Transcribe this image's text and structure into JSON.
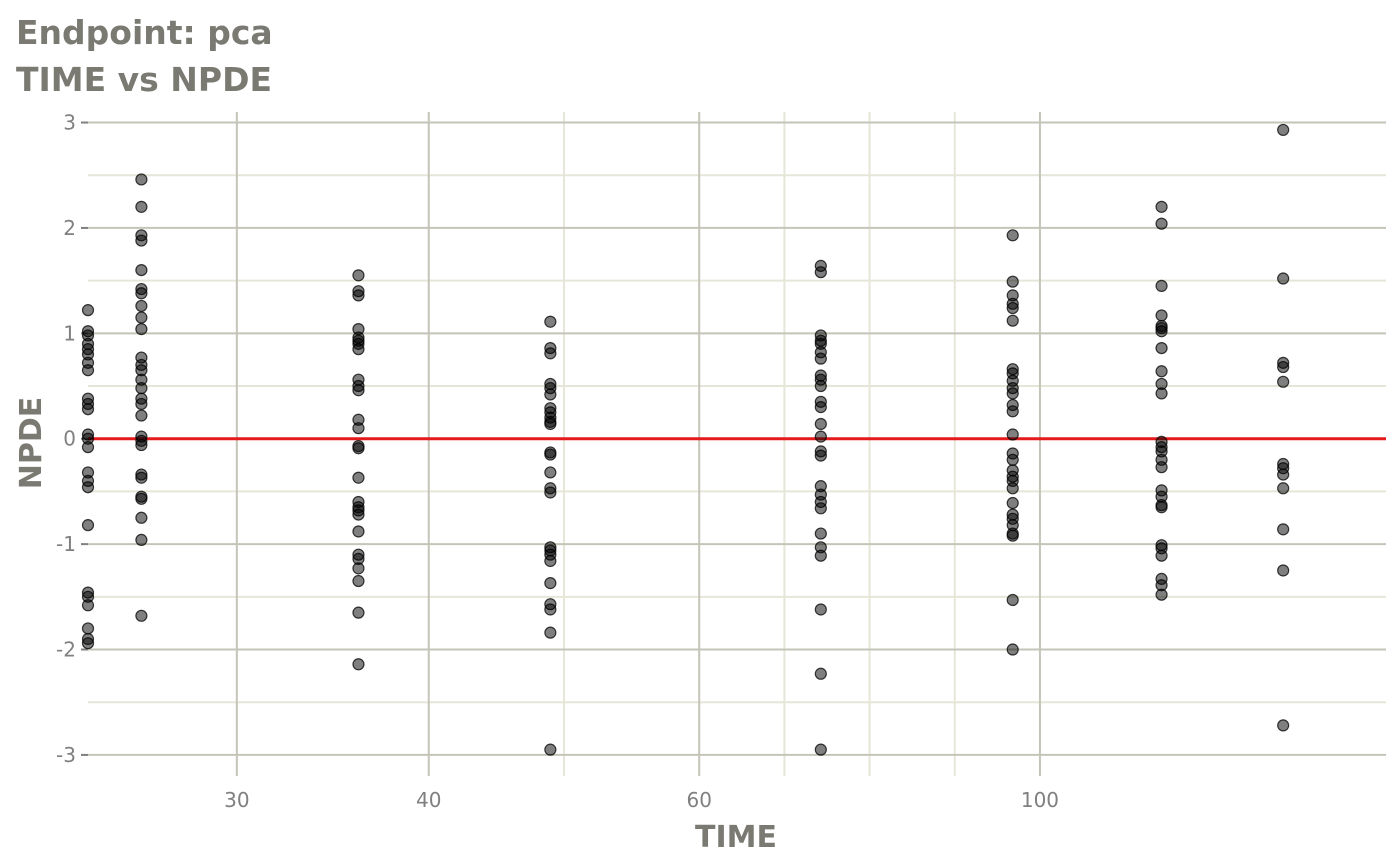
{
  "chart_data": {
    "type": "scatter",
    "title": "Endpoint:  pca",
    "subtitle": "TIME vs NPDE",
    "xlabel": "TIME",
    "ylabel": "NPDE",
    "x_scale": "log",
    "xlim": [
      24,
      168
    ],
    "ylim": [
      -3.2,
      3.1
    ],
    "x_ticks": [
      {
        "value": 30,
        "label": "30"
      },
      {
        "value": 40,
        "label": "40"
      },
      {
        "value": 60,
        "label": "60"
      },
      {
        "value": 100,
        "label": "100"
      }
    ],
    "y_ticks": [
      {
        "value": 3,
        "label": "3"
      },
      {
        "value": 2,
        "label": "2"
      },
      {
        "value": 1,
        "label": "1"
      },
      {
        "value": 0,
        "label": "0"
      },
      {
        "value": -1,
        "label": "-1"
      },
      {
        "value": -2,
        "label": "-2"
      },
      {
        "value": -3,
        "label": "-3"
      }
    ],
    "reference_line": {
      "y": 0,
      "color": "#e41a1c"
    },
    "point_color": "#000000",
    "point_opacity": 0.5,
    "grid": true,
    "series": [
      {
        "values": [
          {
            "x": 24,
            "y": 1.22
          },
          {
            "x": 24,
            "y": 1.02
          },
          {
            "x": 24,
            "y": 0.98
          },
          {
            "x": 24,
            "y": 0.9
          },
          {
            "x": 24,
            "y": 0.85
          },
          {
            "x": 24,
            "y": 0.8
          },
          {
            "x": 24,
            "y": 0.72
          },
          {
            "x": 24,
            "y": 0.65
          },
          {
            "x": 24,
            "y": 0.38
          },
          {
            "x": 24,
            "y": 0.33
          },
          {
            "x": 24,
            "y": 0.28
          },
          {
            "x": 24,
            "y": 0.04
          },
          {
            "x": 24,
            "y": 0.0
          },
          {
            "x": 24,
            "y": -0.08
          },
          {
            "x": 24,
            "y": -0.32
          },
          {
            "x": 24,
            "y": -0.4
          },
          {
            "x": 24,
            "y": -0.46
          },
          {
            "x": 24,
            "y": -0.82
          },
          {
            "x": 24,
            "y": -1.46
          },
          {
            "x": 24,
            "y": -1.5
          },
          {
            "x": 24,
            "y": -1.58
          },
          {
            "x": 24,
            "y": -1.8
          },
          {
            "x": 24,
            "y": -1.9
          },
          {
            "x": 24,
            "y": -1.94
          },
          {
            "x": 26,
            "y": 2.46
          },
          {
            "x": 26,
            "y": 2.2
          },
          {
            "x": 26,
            "y": 1.93
          },
          {
            "x": 26,
            "y": 1.88
          },
          {
            "x": 26,
            "y": 1.6
          },
          {
            "x": 26,
            "y": 1.42
          },
          {
            "x": 26,
            "y": 1.38
          },
          {
            "x": 26,
            "y": 1.26
          },
          {
            "x": 26,
            "y": 1.15
          },
          {
            "x": 26,
            "y": 1.04
          },
          {
            "x": 26,
            "y": 0.77
          },
          {
            "x": 26,
            "y": 0.7
          },
          {
            "x": 26,
            "y": 0.65
          },
          {
            "x": 26,
            "y": 0.56
          },
          {
            "x": 26,
            "y": 0.48
          },
          {
            "x": 26,
            "y": 0.38
          },
          {
            "x": 26,
            "y": 0.33
          },
          {
            "x": 26,
            "y": 0.22
          },
          {
            "x": 26,
            "y": 0.02
          },
          {
            "x": 26,
            "y": -0.02
          },
          {
            "x": 26,
            "y": -0.06
          },
          {
            "x": 26,
            "y": -0.34
          },
          {
            "x": 26,
            "y": -0.37
          },
          {
            "x": 26,
            "y": -0.55
          },
          {
            "x": 26,
            "y": -0.57
          },
          {
            "x": 26,
            "y": -0.75
          },
          {
            "x": 26,
            "y": -0.96
          },
          {
            "x": 26,
            "y": -1.68
          },
          {
            "x": 36,
            "y": 1.55
          },
          {
            "x": 36,
            "y": 1.4
          },
          {
            "x": 36,
            "y": 1.36
          },
          {
            "x": 36,
            "y": 1.04
          },
          {
            "x": 36,
            "y": 0.96
          },
          {
            "x": 36,
            "y": 0.93
          },
          {
            "x": 36,
            "y": 0.9
          },
          {
            "x": 36,
            "y": 0.85
          },
          {
            "x": 36,
            "y": 0.56
          },
          {
            "x": 36,
            "y": 0.5
          },
          {
            "x": 36,
            "y": 0.46
          },
          {
            "x": 36,
            "y": 0.18
          },
          {
            "x": 36,
            "y": 0.1
          },
          {
            "x": 36,
            "y": -0.07
          },
          {
            "x": 36,
            "y": -0.09
          },
          {
            "x": 36,
            "y": -0.37
          },
          {
            "x": 36,
            "y": -0.6
          },
          {
            "x": 36,
            "y": -0.65
          },
          {
            "x": 36,
            "y": -0.68
          },
          {
            "x": 36,
            "y": -0.72
          },
          {
            "x": 36,
            "y": -0.88
          },
          {
            "x": 36,
            "y": -1.1
          },
          {
            "x": 36,
            "y": -1.14
          },
          {
            "x": 36,
            "y": -1.23
          },
          {
            "x": 36,
            "y": -1.35
          },
          {
            "x": 36,
            "y": -1.65
          },
          {
            "x": 36,
            "y": -2.14
          },
          {
            "x": 48,
            "y": 1.11
          },
          {
            "x": 48,
            "y": 0.86
          },
          {
            "x": 48,
            "y": 0.81
          },
          {
            "x": 48,
            "y": 0.52
          },
          {
            "x": 48,
            "y": 0.48
          },
          {
            "x": 48,
            "y": 0.42
          },
          {
            "x": 48,
            "y": 0.29
          },
          {
            "x": 48,
            "y": 0.25
          },
          {
            "x": 48,
            "y": 0.2
          },
          {
            "x": 48,
            "y": 0.16
          },
          {
            "x": 48,
            "y": 0.14
          },
          {
            "x": 48,
            "y": -0.13
          },
          {
            "x": 48,
            "y": -0.15
          },
          {
            "x": 48,
            "y": -0.32
          },
          {
            "x": 48,
            "y": -0.47
          },
          {
            "x": 48,
            "y": -0.51
          },
          {
            "x": 48,
            "y": -1.03
          },
          {
            "x": 48,
            "y": -1.06
          },
          {
            "x": 48,
            "y": -1.1
          },
          {
            "x": 48,
            "y": -1.16
          },
          {
            "x": 48,
            "y": -1.37
          },
          {
            "x": 48,
            "y": -1.57
          },
          {
            "x": 48,
            "y": -1.62
          },
          {
            "x": 48,
            "y": -1.84
          },
          {
            "x": 48,
            "y": -2.95
          },
          {
            "x": 72,
            "y": 1.64
          },
          {
            "x": 72,
            "y": 1.58
          },
          {
            "x": 72,
            "y": 0.98
          },
          {
            "x": 72,
            "y": 0.93
          },
          {
            "x": 72,
            "y": 0.9
          },
          {
            "x": 72,
            "y": 0.82
          },
          {
            "x": 72,
            "y": 0.76
          },
          {
            "x": 72,
            "y": 0.6
          },
          {
            "x": 72,
            "y": 0.56
          },
          {
            "x": 72,
            "y": 0.5
          },
          {
            "x": 72,
            "y": 0.35
          },
          {
            "x": 72,
            "y": 0.3
          },
          {
            "x": 72,
            "y": 0.14
          },
          {
            "x": 72,
            "y": 0.02
          },
          {
            "x": 72,
            "y": -0.12
          },
          {
            "x": 72,
            "y": -0.16
          },
          {
            "x": 72,
            "y": -0.45
          },
          {
            "x": 72,
            "y": -0.53
          },
          {
            "x": 72,
            "y": -0.6
          },
          {
            "x": 72,
            "y": -0.66
          },
          {
            "x": 72,
            "y": -0.9
          },
          {
            "x": 72,
            "y": -1.03
          },
          {
            "x": 72,
            "y": -1.11
          },
          {
            "x": 72,
            "y": -1.62
          },
          {
            "x": 72,
            "y": -2.23
          },
          {
            "x": 72,
            "y": -2.95
          },
          {
            "x": 96,
            "y": 1.93
          },
          {
            "x": 96,
            "y": 1.49
          },
          {
            "x": 96,
            "y": 1.36
          },
          {
            "x": 96,
            "y": 1.28
          },
          {
            "x": 96,
            "y": 1.24
          },
          {
            "x": 96,
            "y": 1.12
          },
          {
            "x": 96,
            "y": 0.66
          },
          {
            "x": 96,
            "y": 0.62
          },
          {
            "x": 96,
            "y": 0.55
          },
          {
            "x": 96,
            "y": 0.48
          },
          {
            "x": 96,
            "y": 0.43
          },
          {
            "x": 96,
            "y": 0.32
          },
          {
            "x": 96,
            "y": 0.26
          },
          {
            "x": 96,
            "y": 0.04
          },
          {
            "x": 96,
            "y": -0.14
          },
          {
            "x": 96,
            "y": -0.2
          },
          {
            "x": 96,
            "y": -0.3
          },
          {
            "x": 96,
            "y": -0.36
          },
          {
            "x": 96,
            "y": -0.4
          },
          {
            "x": 96,
            "y": -0.47
          },
          {
            "x": 96,
            "y": -0.61
          },
          {
            "x": 96,
            "y": -0.72
          },
          {
            "x": 96,
            "y": -0.76
          },
          {
            "x": 96,
            "y": -0.82
          },
          {
            "x": 96,
            "y": -0.9
          },
          {
            "x": 96,
            "y": -0.92
          },
          {
            "x": 96,
            "y": -1.53
          },
          {
            "x": 96,
            "y": -2.0
          },
          {
            "x": 120,
            "y": 2.2
          },
          {
            "x": 120,
            "y": 2.04
          },
          {
            "x": 120,
            "y": 1.45
          },
          {
            "x": 120,
            "y": 1.17
          },
          {
            "x": 120,
            "y": 1.07
          },
          {
            "x": 120,
            "y": 1.05
          },
          {
            "x": 120,
            "y": 1.02
          },
          {
            "x": 120,
            "y": 0.86
          },
          {
            "x": 120,
            "y": 0.64
          },
          {
            "x": 120,
            "y": 0.52
          },
          {
            "x": 120,
            "y": 0.43
          },
          {
            "x": 120,
            "y": -0.03
          },
          {
            "x": 120,
            "y": -0.08
          },
          {
            "x": 120,
            "y": -0.12
          },
          {
            "x": 120,
            "y": -0.2
          },
          {
            "x": 120,
            "y": -0.27
          },
          {
            "x": 120,
            "y": -0.49
          },
          {
            "x": 120,
            "y": -0.55
          },
          {
            "x": 120,
            "y": -0.63
          },
          {
            "x": 120,
            "y": -0.65
          },
          {
            "x": 120,
            "y": -1.01
          },
          {
            "x": 120,
            "y": -1.04
          },
          {
            "x": 120,
            "y": -1.11
          },
          {
            "x": 120,
            "y": -1.33
          },
          {
            "x": 120,
            "y": -1.39
          },
          {
            "x": 120,
            "y": -1.48
          },
          {
            "x": 144,
            "y": 2.93
          },
          {
            "x": 144,
            "y": 1.52
          },
          {
            "x": 144,
            "y": 0.72
          },
          {
            "x": 144,
            "y": 0.68
          },
          {
            "x": 144,
            "y": 0.54
          },
          {
            "x": 144,
            "y": -0.24
          },
          {
            "x": 144,
            "y": -0.28
          },
          {
            "x": 144,
            "y": -0.34
          },
          {
            "x": 144,
            "y": -0.47
          },
          {
            "x": 144,
            "y": -0.86
          },
          {
            "x": 144,
            "y": -1.25
          },
          {
            "x": 144,
            "y": -2.72
          }
        ]
      }
    ]
  }
}
